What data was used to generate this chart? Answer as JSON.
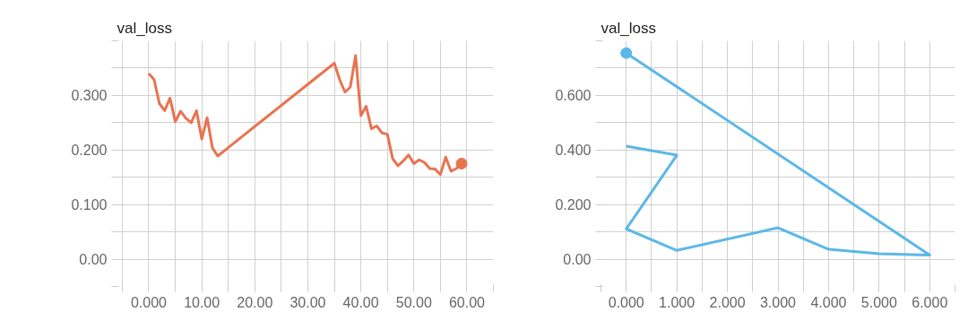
{
  "chart_data": [
    {
      "type": "line",
      "title": "val_loss",
      "xlim": [
        -6,
        65
      ],
      "ylim": [
        -0.05,
        0.4
      ],
      "xticks": [
        {
          "value": -5,
          "label": null
        },
        {
          "value": 0,
          "label": "0.000"
        },
        {
          "value": 5,
          "label": null
        },
        {
          "value": 10,
          "label": "10.00"
        },
        {
          "value": 15,
          "label": null
        },
        {
          "value": 20,
          "label": "20.00"
        },
        {
          "value": 25,
          "label": null
        },
        {
          "value": 30,
          "label": "30.00"
        },
        {
          "value": 35,
          "label": null
        },
        {
          "value": 40,
          "label": "40.00"
        },
        {
          "value": 45,
          "label": null
        },
        {
          "value": 50,
          "label": "50.00"
        },
        {
          "value": 55,
          "label": null
        },
        {
          "value": 60,
          "label": "60.00"
        },
        {
          "value": 65,
          "label": null
        }
      ],
      "yticks": [
        {
          "value": -0.05,
          "label": null
        },
        {
          "value": 0,
          "label": "0.00"
        },
        {
          "value": 0.05,
          "label": null
        },
        {
          "value": 0.1,
          "label": "0.100"
        },
        {
          "value": 0.15,
          "label": null
        },
        {
          "value": 0.2,
          "label": "0.200"
        },
        {
          "value": 0.25,
          "label": null
        },
        {
          "value": 0.3,
          "label": "0.300"
        },
        {
          "value": 0.35,
          "label": null
        },
        {
          "value": 0.4,
          "label": null
        }
      ],
      "grid": true,
      "marker": "none",
      "line_style": "solid",
      "series": [
        {
          "color": "#e8734f",
          "x": [
            0,
            1,
            2,
            3,
            4,
            5,
            6,
            7,
            8,
            9,
            10,
            11,
            12,
            13,
            35,
            36,
            37,
            38,
            39,
            40,
            41,
            42,
            43,
            44,
            45,
            46,
            47,
            48,
            49,
            50,
            51,
            52,
            53,
            54,
            55,
            56,
            57,
            58,
            59
          ],
          "values": [
            0.34,
            0.329,
            0.285,
            0.272,
            0.295,
            0.252,
            0.271,
            0.258,
            0.25,
            0.272,
            0.22,
            0.259,
            0.204,
            0.189,
            0.359,
            0.329,
            0.306,
            0.315,
            0.373,
            0.263,
            0.28,
            0.239,
            0.244,
            0.231,
            0.229,
            0.184,
            0.171,
            0.18,
            0.191,
            0.175,
            0.182,
            0.177,
            0.166,
            0.165,
            0.155,
            0.187,
            0.161,
            0.166,
            0.175
          ]
        },
        {
          "type": "scatter",
          "marker": "circle",
          "color": "#e8734f",
          "x": [
            59
          ],
          "values": [
            0.175
          ]
        }
      ]
    },
    {
      "type": "line",
      "title": "val_loss",
      "xlim": [
        -0.5,
        6.5
      ],
      "ylim": [
        -0.1,
        0.8
      ],
      "xticks": [
        {
          "value": -0.5,
          "label": null
        },
        {
          "value": 0,
          "label": "0.000"
        },
        {
          "value": 0.5,
          "label": null
        },
        {
          "value": 1,
          "label": "1.000"
        },
        {
          "value": 1.5,
          "label": null
        },
        {
          "value": 2,
          "label": "2.000"
        },
        {
          "value": 2.5,
          "label": null
        },
        {
          "value": 3,
          "label": "3.000"
        },
        {
          "value": 3.5,
          "label": null
        },
        {
          "value": 4,
          "label": "4.000"
        },
        {
          "value": 4.5,
          "label": null
        },
        {
          "value": 5,
          "label": "5.000"
        },
        {
          "value": 5.5,
          "label": null
        },
        {
          "value": 6,
          "label": "6.000"
        },
        {
          "value": 6.5,
          "label": null
        }
      ],
      "yticks": [
        {
          "value": -0.1,
          "label": null
        },
        {
          "value": 0,
          "label": "0.00"
        },
        {
          "value": 0.1,
          "label": null
        },
        {
          "value": 0.2,
          "label": "0.200"
        },
        {
          "value": 0.3,
          "label": null
        },
        {
          "value": 0.4,
          "label": "0.400"
        },
        {
          "value": 0.5,
          "label": null
        },
        {
          "value": 0.6,
          "label": "0.600"
        },
        {
          "value": 0.7,
          "label": null
        },
        {
          "value": 0.8,
          "label": null
        }
      ],
      "grid": true,
      "marker": "none",
      "line_style": "solid",
      "series": [
        {
          "color": "#5bb8e6",
          "x": [
            0,
            1,
            0,
            1,
            3,
            4,
            5,
            6,
            0
          ],
          "values": [
            0.414,
            0.381,
            0.111,
            0.032,
            0.115,
            0.036,
            0.02,
            0.015,
            0.755
          ]
        },
        {
          "type": "scatter",
          "marker": "circle",
          "color": "#5bb8e6",
          "x": [
            0
          ],
          "values": [
            0.755
          ]
        }
      ]
    }
  ]
}
